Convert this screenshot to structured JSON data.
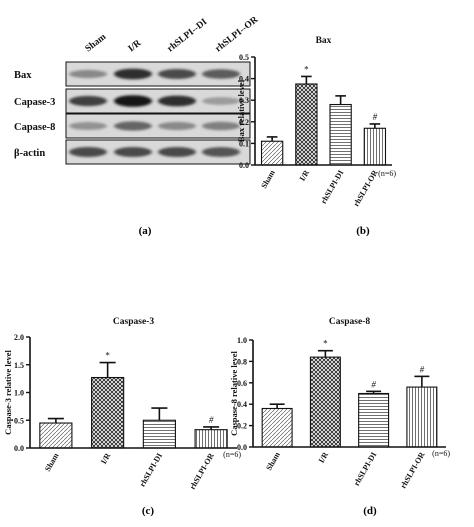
{
  "panel_labels": {
    "a": "(a)",
    "b": "(b)",
    "c": "(c)",
    "d": "(d)"
  },
  "blot": {
    "lanes": [
      "Sham",
      "I/R",
      "rhSLPI--DI",
      "rhSLPI--OR"
    ],
    "rows": [
      {
        "label": "Bax",
        "intensity": [
          0.35,
          0.85,
          0.7,
          0.6
        ]
      },
      {
        "label": "Capase-3",
        "intensity": [
          0.75,
          1.0,
          0.85,
          0.25
        ]
      },
      {
        "label": "Capase-8",
        "intensity": [
          0.3,
          0.55,
          0.35,
          0.4
        ]
      },
      {
        "label": "β-actin",
        "intensity": [
          0.7,
          0.7,
          0.7,
          0.65
        ]
      }
    ]
  },
  "chart_data": [
    {
      "type": "bar",
      "title": "Bax",
      "ylabel": "Bax relative level",
      "categories": [
        "Sham",
        "I/R",
        "rhSLPI-DI",
        "rhSLPI-OR"
      ],
      "values": [
        0.11,
        0.375,
        0.28,
        0.17
      ],
      "errors": [
        0.02,
        0.035,
        0.04,
        0.02
      ],
      "annotations": [
        "",
        "*",
        "",
        "#"
      ],
      "ylim": [
        0,
        0.5
      ],
      "yticks": [
        "0.0",
        "0.1",
        "0.2",
        "0.3",
        "0.4",
        "0.5"
      ],
      "n_label": "(n=6)",
      "patterns": [
        "sham",
        "ir",
        "hline",
        "vline"
      ]
    },
    {
      "type": "bar",
      "title": "Caspase-3",
      "ylabel": "Caspase-3 relative level",
      "categories": [
        "Sham",
        "I/R",
        "rhSLPI-DI",
        "rhSLPI-OR"
      ],
      "values": [
        0.45,
        1.27,
        0.5,
        0.33
      ],
      "errors": [
        0.08,
        0.27,
        0.22,
        0.05
      ],
      "annotations": [
        "",
        "*",
        "",
        "#"
      ],
      "ylim": [
        0,
        2.0
      ],
      "yticks": [
        "0.0",
        "0.5",
        "1.0",
        "1.5",
        "2.0"
      ],
      "n_label": "(n=6)",
      "patterns": [
        "sham",
        "ir",
        "hline",
        "vline"
      ]
    },
    {
      "type": "bar",
      "title": "Caspase-8",
      "ylabel": "Caspase-8 relative level",
      "categories": [
        "Sham",
        "I/R",
        "rhSLPI-DI",
        "rhSLPI-OR"
      ],
      "values": [
        0.36,
        0.84,
        0.5,
        0.56
      ],
      "errors": [
        0.04,
        0.06,
        0.02,
        0.1
      ],
      "annotations": [
        "",
        "*",
        "#",
        "#"
      ],
      "ylim": [
        0,
        1.0
      ],
      "yticks": [
        "0.0",
        "0.2",
        "0.4",
        "0.6",
        "0.8",
        "1.0"
      ],
      "n_label": "(n=6)",
      "patterns": [
        "sham",
        "ir",
        "hline",
        "vline"
      ]
    }
  ]
}
